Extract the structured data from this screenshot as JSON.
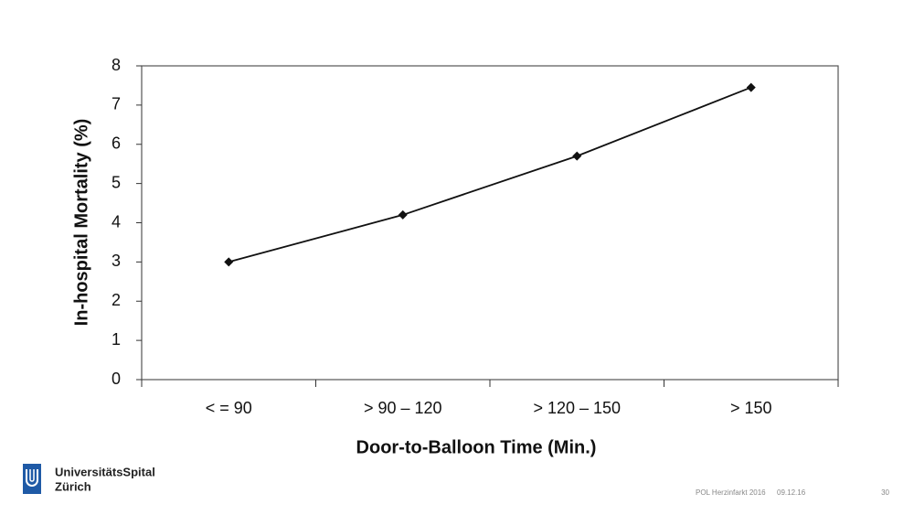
{
  "chart_data": {
    "type": "line",
    "categories": [
      "< = 90",
      "> 90 – 120",
      "> 120 – 150",
      "> 150"
    ],
    "values": [
      3.0,
      4.2,
      5.7,
      7.45
    ],
    "color": "#111111",
    "xlabel": "Door-to-Balloon Time (Min.)",
    "ylabel": "In-hospital Mortality (%)",
    "ylim": [
      0,
      8
    ],
    "yticks": [
      0,
      1,
      2,
      3,
      4,
      5,
      6,
      7,
      8
    ],
    "grid": false
  },
  "footer": {
    "logo_line1": "UniversitätsSpital",
    "logo_line2": "Zürich",
    "course": "POL Herzinfarkt 2016",
    "date": "09.12.16",
    "page": "30"
  }
}
